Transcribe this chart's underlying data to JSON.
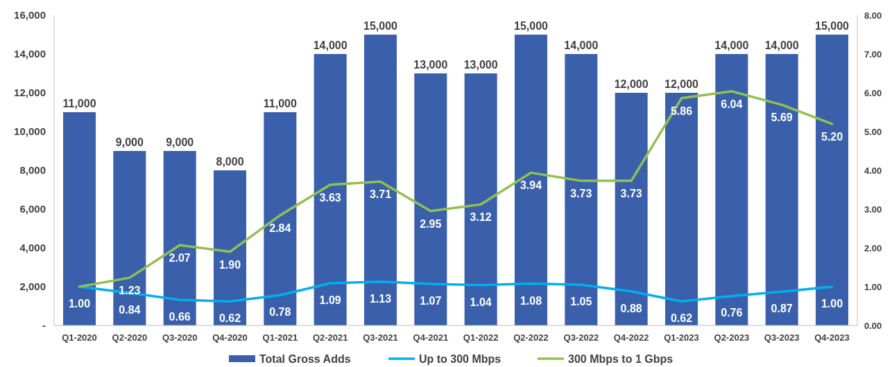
{
  "chart_data": {
    "type": "bar",
    "categories": [
      "Q1-2020",
      "Q2-2020",
      "Q3-2020",
      "Q4-2020",
      "Q1-2021",
      "Q2-2021",
      "Q3-2021",
      "Q4-2021",
      "Q1-2022",
      "Q2-2022",
      "Q3-2022",
      "Q4-2022",
      "Q1-2023",
      "Q2-2023",
      "Q3-2023",
      "Q4-2023"
    ],
    "series": [
      {
        "name": "Total Gross Adds",
        "color": "#3a60ab",
        "values": [
          11000,
          9000,
          9000,
          8000,
          11000,
          14000,
          15000,
          13000,
          13000,
          15000,
          14000,
          12000,
          12000,
          14000,
          14000,
          15000
        ],
        "value_labels": [
          "11,000",
          "9,000",
          "9,000",
          "8,000",
          "11,000",
          "14,000",
          "15,000",
          "13,000",
          "13,000",
          "15,000",
          "14,000",
          "12,000",
          "12,000",
          "14,000",
          "14,000",
          "15,000"
        ]
      },
      {
        "name": "Up to 300 Mbps",
        "type": "line",
        "axis": "y2",
        "color": "#00b0f0",
        "values": [
          1.0,
          0.84,
          0.66,
          0.62,
          0.78,
          1.09,
          1.13,
          1.07,
          1.04,
          1.08,
          1.05,
          0.88,
          0.62,
          0.76,
          0.87,
          1.0
        ],
        "value_labels": [
          "1.00",
          "0.84",
          "0.66",
          "0.62",
          "0.78",
          "1.09",
          "1.13",
          "1.07",
          "1.04",
          "1.08",
          "1.05",
          "0.88",
          "0.62",
          "0.76",
          "0.87",
          "1.00"
        ]
      },
      {
        "name": "300 Mbps to 1 Gbps",
        "type": "line",
        "axis": "y2",
        "color": "#92c050",
        "values": [
          1.0,
          1.23,
          2.07,
          1.9,
          2.84,
          3.63,
          3.71,
          2.95,
          3.12,
          3.94,
          3.73,
          3.73,
          5.86,
          6.04,
          5.69,
          5.2
        ],
        "value_labels": [
          null,
          "1.23",
          "2.07",
          "1.90",
          "2.84",
          "3.63",
          "3.71",
          "2.95",
          "3.12",
          "3.94",
          "3.73",
          "3.73",
          "5.86",
          "6.04",
          "5.69",
          "5.20"
        ]
      }
    ],
    "ylim": [
      0,
      16000
    ],
    "yticks": [
      {
        "value": 0,
        "label": "-"
      },
      {
        "value": 2000,
        "label": "2,000"
      },
      {
        "value": 4000,
        "label": "4,000"
      },
      {
        "value": 6000,
        "label": "6,000"
      },
      {
        "value": 8000,
        "label": "8,000"
      },
      {
        "value": 10000,
        "label": "10,000"
      },
      {
        "value": 12000,
        "label": "12,000"
      },
      {
        "value": 14000,
        "label": "14,000"
      },
      {
        "value": 16000,
        "label": "16,000"
      }
    ],
    "y2lim": [
      0,
      8
    ],
    "y2ticks": [
      {
        "value": 0,
        "label": "0.00"
      },
      {
        "value": 1,
        "label": "1.00"
      },
      {
        "value": 2,
        "label": "2.00"
      },
      {
        "value": 3,
        "label": "3.00"
      },
      {
        "value": 4,
        "label": "4.00"
      },
      {
        "value": 5,
        "label": "5.00"
      },
      {
        "value": 6,
        "label": "6.00"
      },
      {
        "value": 7,
        "label": "7.00"
      },
      {
        "value": 8,
        "label": "8.00"
      }
    ],
    "legend": "bottom",
    "grid": false
  }
}
